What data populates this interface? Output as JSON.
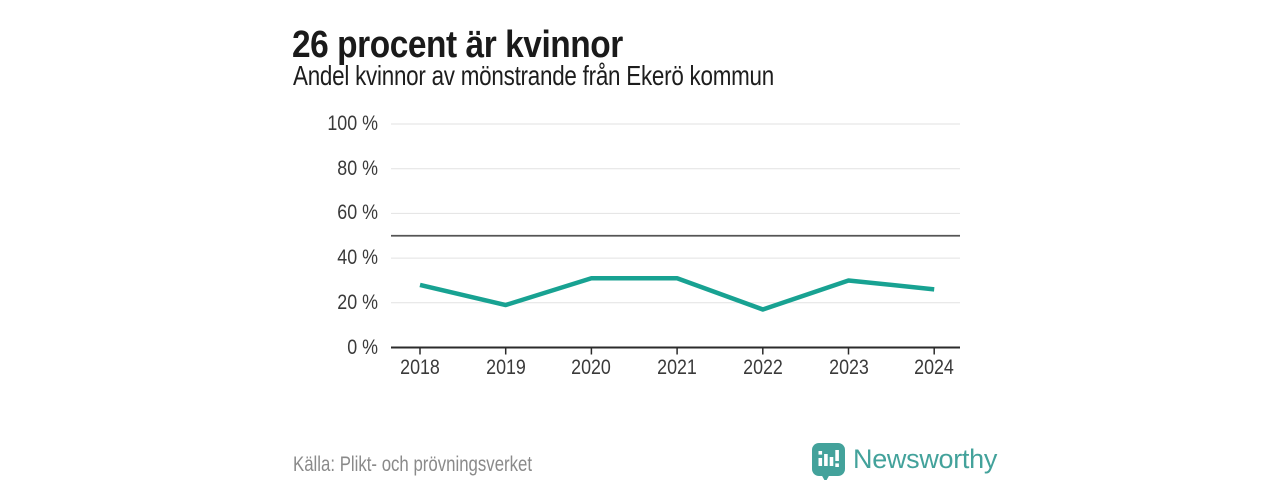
{
  "title": "26 procent är kvinnor",
  "subtitle": "Andel kvinnor av mönstrande från Ekerö kommun",
  "source": "Källa: Plikt- och prövningsverket",
  "brand": {
    "name": "Newsworthy",
    "color": "#43a29b",
    "icon": "bar-chart-speech-bubble"
  },
  "colors": {
    "line": "#18a292",
    "grid": "#e2e2e2",
    "axis": "#2b2b2b",
    "reference_line": "#555555",
    "title_text": "#1a1a1a",
    "tick_text": "#3a3a3a",
    "source_text": "#8a8a8a",
    "background": "#ffffff"
  },
  "chart_data": {
    "type": "line",
    "title": "26 procent är kvinnor",
    "subtitle": "Andel kvinnor av mönstrande från Ekerö kommun",
    "x": [
      2018,
      2019,
      2020,
      2021,
      2022,
      2023,
      2024
    ],
    "series": [
      {
        "name": "Andel kvinnor av mönstrande",
        "unit": "%",
        "values": [
          28,
          19,
          31,
          31,
          17,
          30,
          26
        ]
      }
    ],
    "xlabel": "",
    "ylabel": "",
    "ylim": [
      0,
      100
    ],
    "yticks": [
      0,
      20,
      40,
      60,
      80,
      100
    ],
    "ytick_format": "{v} %",
    "reference_line": 50,
    "grid": true,
    "legend": false
  }
}
